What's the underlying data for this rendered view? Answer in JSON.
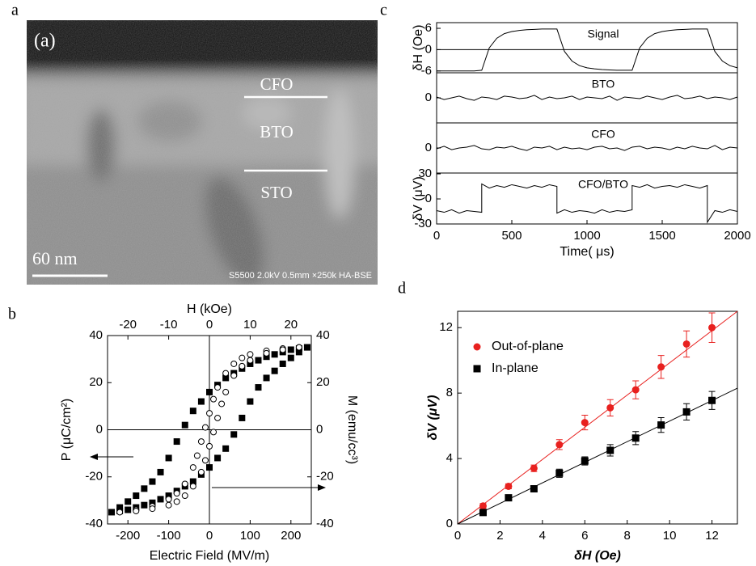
{
  "image": {
    "panel": "a",
    "inset_label": "(a)",
    "layers": [
      "CFO",
      "BTO",
      "STO"
    ],
    "scale_bar": "60 nm",
    "footer": "S5500 2.0kV 0.5mm ×250k HA-BSE"
  },
  "chart_data": [
    {
      "type": "scatter",
      "panel": "b",
      "xlabel": "Electric Field (MV/m)",
      "ylabel": "P (μC/cm²)",
      "x2label": "H (kOe)",
      "y2label": "M (emu/cc³)",
      "xlim": [
        -250,
        250
      ],
      "xticks": [
        -200,
        -100,
        0,
        100,
        200
      ],
      "x2lim": [
        -25,
        25
      ],
      "x2ticks": [
        -20,
        -10,
        0,
        10,
        20
      ],
      "ylim": [
        -40,
        40
      ],
      "yticks": [
        -40,
        -20,
        0,
        20,
        40
      ],
      "y2lim": [
        -40,
        40
      ],
      "y2ticks": [
        -40,
        -20,
        0,
        20,
        40
      ],
      "zero_lines": "xy",
      "series": [
        {
          "marker": "square",
          "filled": true,
          "color": "#000000",
          "x": [
            240,
            220,
            200,
            180,
            160,
            140,
            120,
            100,
            80,
            60,
            40,
            20,
            0,
            -20,
            -40,
            -60,
            -80,
            -100,
            -120,
            -140,
            -160,
            -180,
            -200,
            -220,
            -240,
            -220,
            -200,
            -180,
            -160,
            -140,
            -120,
            -100,
            -80,
            -60,
            -40,
            -20,
            0,
            20,
            40,
            60,
            80,
            100,
            120,
            140,
            160,
            180,
            200,
            220,
            240
          ],
          "values": [
            35,
            34.5,
            34,
            33,
            32,
            31,
            29.5,
            28,
            26,
            24,
            22,
            19,
            16,
            12,
            8,
            2,
            -5,
            -12,
            -18,
            -22,
            -25,
            -28,
            -30.5,
            -33,
            -35,
            -34.5,
            -34,
            -33,
            -32,
            -31,
            -29.5,
            -28,
            -26,
            -24,
            -22,
            -19,
            -16,
            -12,
            -8,
            -2,
            5,
            12,
            18,
            22,
            25,
            28,
            30.5,
            33,
            35
          ]
        },
        {
          "marker": "circle",
          "filled": false,
          "color": "#000000",
          "axis": "y2",
          "x_axis": "x2",
          "x": [
            22,
            18,
            14,
            10,
            8,
            6,
            4,
            2,
            1,
            0,
            -1,
            -2,
            -3,
            -4,
            -6,
            -8,
            -10,
            -14,
            -18,
            -22,
            -18,
            -14,
            -10,
            -8,
            -6,
            -4,
            -2,
            -1,
            0,
            1,
            2,
            3,
            4,
            6,
            8,
            10,
            14,
            18,
            22
          ],
          "values": [
            35,
            34.5,
            33.5,
            32,
            30.5,
            28,
            24,
            18,
            13,
            7,
            1,
            -5,
            -11,
            -16,
            -23,
            -27,
            -29.5,
            -32.5,
            -34,
            -35,
            -34.5,
            -33.5,
            -32,
            -30.5,
            -28,
            -24,
            -18,
            -13,
            -7,
            -1,
            5,
            11,
            16,
            23,
            27,
            29.5,
            32.5,
            34,
            35
          ]
        }
      ]
    },
    {
      "type": "line",
      "panel": "c",
      "label": "Signal",
      "ylabel": "δH (Oe)",
      "xlim": [
        0,
        2000
      ],
      "ylim": [
        -6.5,
        7.6
      ],
      "yticks": [
        -6,
        0,
        6
      ],
      "zero_lines": "y",
      "series": [
        {
          "color": "#000000",
          "x": [
            0,
            50,
            100,
            150,
            200,
            250,
            300,
            350,
            400,
            450,
            500,
            550,
            600,
            650,
            700,
            750,
            800,
            850,
            900,
            950,
            1000,
            1050,
            1100,
            1150,
            1200,
            1250,
            1300,
            1350,
            1400,
            1450,
            1500,
            1550,
            1600,
            1650,
            1700,
            1750,
            1800,
            1850,
            1900,
            1950,
            2000
          ],
          "values": [
            -6,
            -6,
            -6,
            -6,
            -6,
            -6,
            -5.8,
            0.5,
            3.2,
            4.5,
            5.1,
            5.4,
            5.6,
            5.7,
            5.8,
            5.8,
            5.8,
            -0.5,
            -3.2,
            -4.5,
            -5.1,
            -5.4,
            -5.6,
            -5.7,
            -5.8,
            -5.8,
            -5.8,
            0.5,
            3.2,
            4.5,
            5.1,
            5.4,
            5.6,
            5.7,
            5.8,
            5.8,
            5.8,
            -0.5,
            -3.2,
            -4.5,
            -5.1
          ]
        }
      ]
    },
    {
      "type": "line",
      "label": "BTO",
      "xlim": [
        0,
        2000
      ],
      "ylim": [
        -30,
        30
      ],
      "yticks": [
        0
      ],
      "series": [
        {
          "color": "#000000",
          "x": [
            0,
            50,
            100,
            150,
            200,
            250,
            300,
            350,
            400,
            450,
            500,
            550,
            600,
            650,
            700,
            750,
            800,
            850,
            900,
            950,
            1000,
            1050,
            1100,
            1150,
            1200,
            1250,
            1300,
            1350,
            1400,
            1450,
            1500,
            1550,
            1600,
            1650,
            1700,
            1750,
            1800,
            1850,
            1900,
            1950,
            2000
          ],
          "values": [
            1,
            -2,
            0,
            2,
            -1,
            -3,
            1,
            0,
            -2,
            2,
            1,
            -1,
            0,
            3,
            -2,
            1,
            -1,
            0,
            2,
            -2,
            1,
            0,
            -1,
            2,
            -3,
            1,
            0,
            -1,
            2,
            0,
            -2,
            1,
            3,
            -1,
            0,
            2,
            -1,
            1,
            0,
            -2,
            1
          ]
        }
      ]
    },
    {
      "type": "line",
      "label": "CFO",
      "xlim": [
        0,
        2000
      ],
      "ylim": [
        -30,
        30
      ],
      "yticks": [
        0
      ],
      "series": [
        {
          "color": "#000000",
          "x": [
            0,
            50,
            100,
            150,
            200,
            250,
            300,
            350,
            400,
            450,
            500,
            550,
            600,
            650,
            700,
            750,
            800,
            850,
            900,
            950,
            1000,
            1050,
            1100,
            1150,
            1200,
            1250,
            1300,
            1350,
            1400,
            1450,
            1500,
            1550,
            1600,
            1650,
            1700,
            1750,
            1800,
            1850,
            1900,
            1950,
            2000
          ],
          "values": [
            -1,
            2,
            -2,
            0,
            1,
            3,
            -1,
            -2,
            1,
            0,
            2,
            -1,
            -3,
            1,
            0,
            2,
            -2,
            1,
            -1,
            0,
            -2,
            1,
            2,
            -1,
            0,
            -3,
            1,
            2,
            -1,
            1,
            0,
            -2,
            1,
            -1,
            2,
            0,
            -1,
            3,
            -2,
            1,
            0
          ]
        }
      ]
    },
    {
      "type": "line",
      "label": "CFO/BTO",
      "ylabel": "δV (μV)",
      "xlabel": "Time( μs)",
      "xlim": [
        0,
        2000
      ],
      "xticks": [
        0,
        500,
        1000,
        1500,
        2000
      ],
      "ylim": [
        -30,
        31
      ],
      "yticks": [
        -30,
        0,
        30
      ],
      "series": [
        {
          "color": "#000000",
          "x": [
            0,
            50,
            100,
            150,
            200,
            250,
            300,
            300,
            350,
            400,
            450,
            500,
            550,
            600,
            650,
            700,
            750,
            800,
            800,
            850,
            900,
            950,
            1000,
            1050,
            1100,
            1150,
            1200,
            1250,
            1300,
            1300,
            1350,
            1400,
            1450,
            1500,
            1550,
            1600,
            1650,
            1700,
            1750,
            1800,
            1800,
            1850,
            1900,
            1950,
            2000
          ],
          "values": [
            -14,
            -16,
            -13,
            -17,
            -14,
            -15,
            -16,
            18,
            13,
            16,
            14,
            17,
            15,
            13,
            16,
            14,
            17,
            15,
            -17,
            -13,
            -16,
            -14,
            -15,
            -17,
            -13,
            -16,
            -14,
            -15,
            -13,
            16,
            14,
            17,
            13,
            15,
            16,
            14,
            17,
            15,
            13,
            16,
            -28,
            -14,
            -16,
            -13,
            -15
          ]
        }
      ]
    },
    {
      "type": "scatter",
      "panel": "d",
      "xlabel": "δH (Oe)",
      "ylabel": "δV (μV)",
      "xlim": [
        0,
        13.2
      ],
      "xticks": [
        0,
        2,
        4,
        6,
        8,
        10,
        12
      ],
      "ylim": [
        0,
        13
      ],
      "yticks": [
        0,
        4,
        8,
        12
      ],
      "legend": "upper left",
      "series": [
        {
          "name": "Out-of-plane",
          "marker": "circle",
          "filled": true,
          "color": "#e8211f",
          "x": [
            1.2,
            2.4,
            3.6,
            4.8,
            6,
            7.2,
            8.4,
            9.6,
            10.8,
            12
          ],
          "values": [
            1.1,
            2.3,
            3.4,
            4.85,
            6.2,
            7.1,
            8.2,
            9.6,
            11.0,
            12.0
          ],
          "errors": [
            0.15,
            0.15,
            0.2,
            0.3,
            0.45,
            0.5,
            0.55,
            0.7,
            0.8,
            0.9
          ],
          "fit_x": [
            0,
            13.2
          ],
          "fit_values": [
            0,
            13
          ]
        },
        {
          "name": "In-plane",
          "marker": "square",
          "filled": true,
          "color": "#000000",
          "x": [
            1.2,
            2.4,
            3.6,
            4.8,
            6,
            7.2,
            8.4,
            9.6,
            10.8,
            12
          ],
          "values": [
            0.7,
            1.6,
            2.15,
            3.1,
            3.85,
            4.5,
            5.25,
            6.05,
            6.85,
            7.55
          ],
          "errors": [
            0.1,
            0.1,
            0.15,
            0.25,
            0.25,
            0.35,
            0.4,
            0.45,
            0.5,
            0.55
          ],
          "fit_x": [
            0,
            13.2
          ],
          "fit_values": [
            0,
            8.3
          ]
        }
      ]
    }
  ]
}
